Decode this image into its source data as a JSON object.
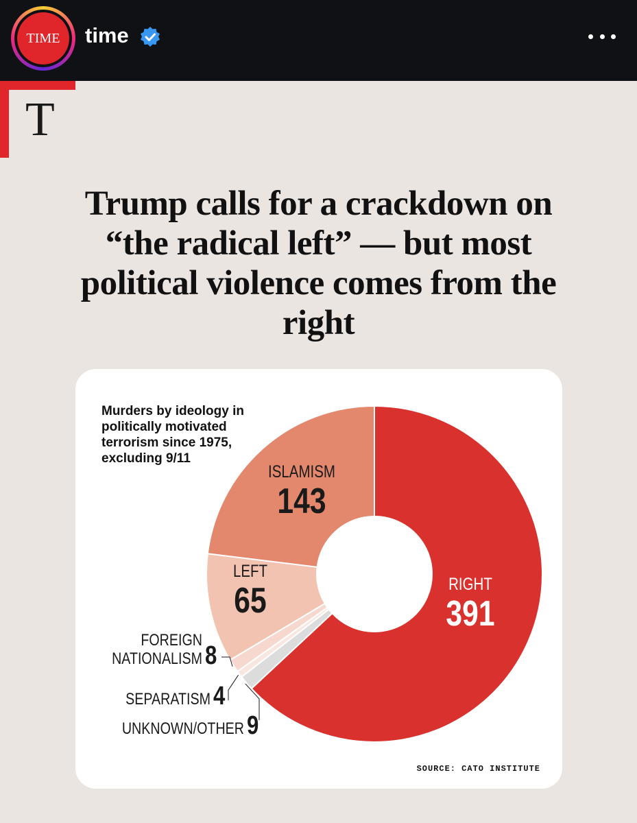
{
  "header": {
    "avatar_text": "TIME",
    "username": "time",
    "more_label": "more options"
  },
  "post": {
    "logo_letter": "T",
    "headline": "Trump calls for a crackdown on “the radical left” — but most political violence comes from the right"
  },
  "colors": {
    "right": "#d8312e",
    "islamism": "#e3876d",
    "left": "#f2c3b1",
    "foreign_nationalism": "#f6d8ce",
    "separatism": "#f8e6e0",
    "unknown_other": "#dcdcdc",
    "accent": "#e0262b",
    "verified": "#3897f0"
  },
  "chart_data": {
    "type": "pie",
    "donut": true,
    "title": "Murders by ideology in politically motivated terrorism since 1975, excluding 9/11",
    "source": "SOURCE: CATO INSTITUTE",
    "categories": [
      "RIGHT",
      "ISLAMISM",
      "LEFT",
      "FOREIGN NATIONALISM",
      "SEPARATISM",
      "UNKNOWN/OTHER"
    ],
    "values": [
      391,
      143,
      65,
      8,
      4,
      9
    ],
    "label_lines": [
      [
        "RIGHT"
      ],
      [
        "ISLAMISM"
      ],
      [
        "LEFT"
      ],
      [
        "FOREIGN",
        "NATIONALISM"
      ],
      [
        "SEPARATISM"
      ],
      [
        "UNKNOWN/OTHER"
      ]
    ]
  }
}
